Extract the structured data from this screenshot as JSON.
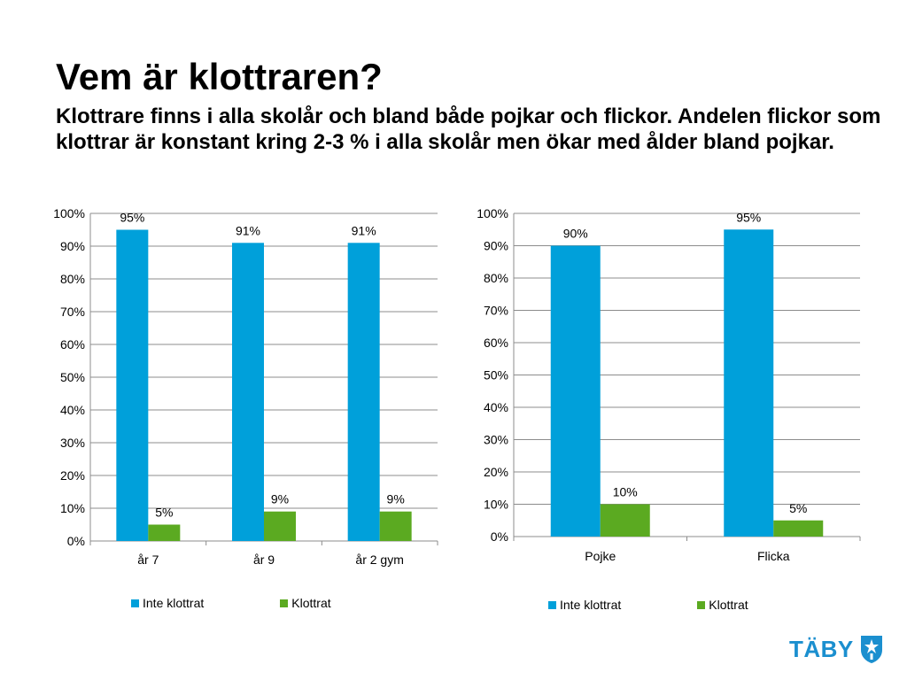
{
  "slide": {
    "title": "Vem är klottraren?",
    "subtitle": "Klottrare finns i alla skolår och bland både pojkar och flickor. Andelen flickor som klottrar är konstant kring 2-3 % i alla skolår men ökar med ålder bland pojkar."
  },
  "logo": {
    "text": "TÄBY",
    "icon": "taby-crest-icon"
  },
  "colors": {
    "inte_klottrat": "#00A0DA",
    "klottrat": "#5BAA21",
    "grid": "#8c8c8c"
  },
  "chart_data": [
    {
      "type": "bar",
      "categories": [
        "år 7",
        "år 9",
        "år 2 gym"
      ],
      "series": [
        {
          "name": "Inte klottrat",
          "values": [
            95,
            91,
            91
          ],
          "labels": [
            "95%",
            "91%",
            "91%"
          ]
        },
        {
          "name": "Klottrat",
          "values": [
            5,
            9,
            9
          ],
          "labels": [
            "5%",
            "9%",
            "9%"
          ]
        }
      ],
      "ylim": [
        0,
        100
      ],
      "yticks": [
        "0%",
        "10%",
        "20%",
        "30%",
        "40%",
        "50%",
        "60%",
        "70%",
        "80%",
        "90%",
        "100%"
      ],
      "grid": true,
      "legend": "bottom"
    },
    {
      "type": "bar",
      "categories": [
        "Pojke",
        "Flicka"
      ],
      "series": [
        {
          "name": "Inte klottrat",
          "values": [
            90,
            95
          ],
          "labels": [
            "90%",
            "95%"
          ]
        },
        {
          "name": "Klottrat",
          "values": [
            10,
            5
          ],
          "labels": [
            "10%",
            "5%"
          ]
        }
      ],
      "ylim": [
        0,
        100
      ],
      "yticks": [
        "0%",
        "10%",
        "20%",
        "30%",
        "40%",
        "50%",
        "60%",
        "70%",
        "80%",
        "90%",
        "100%"
      ],
      "grid": true,
      "legend": "bottom"
    }
  ]
}
